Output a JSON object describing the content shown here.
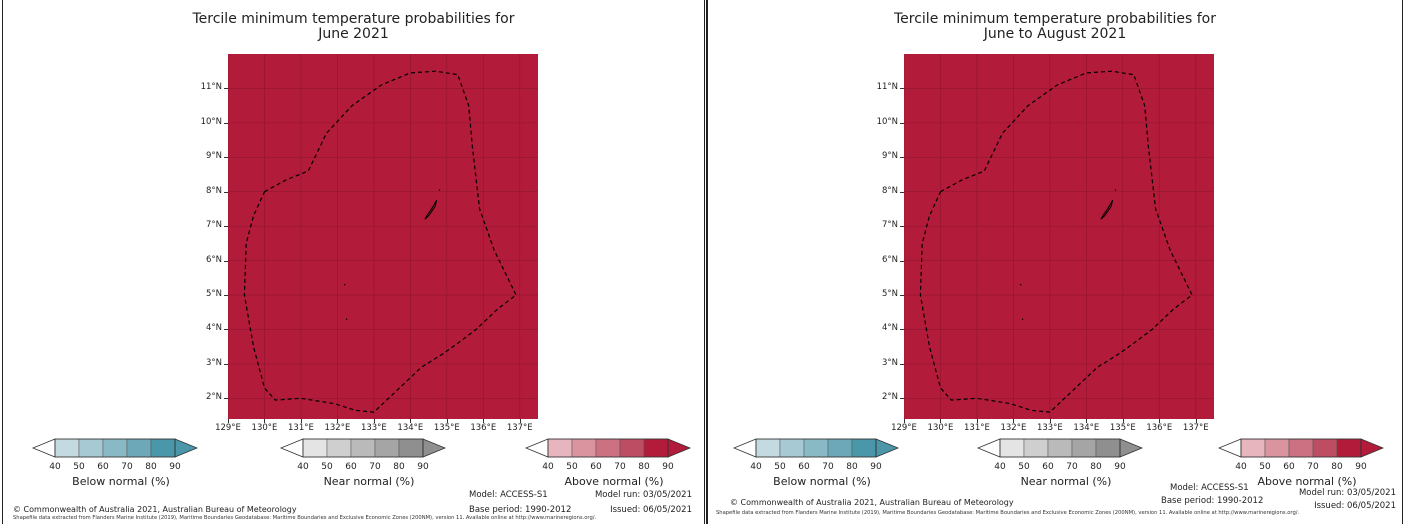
{
  "panels": [
    {
      "title_line1": "Tercile minimum temperature probabilities for",
      "title_line2": "June 2021"
    },
    {
      "title_line1": "Tercile minimum temperature probabilities for",
      "title_line2": "June to August 2021"
    }
  ],
  "map": {
    "fill_color": "#b21b39",
    "lat_labels": [
      "11°N",
      "10°N",
      "9°N",
      "8°N",
      "7°N",
      "6°N",
      "5°N",
      "4°N",
      "3°N",
      "2°N"
    ],
    "lon_labels": [
      "129°E",
      "130°E",
      "131°E",
      "132°E",
      "133°E",
      "134°E",
      "135°E",
      "136°E",
      "137°E"
    ],
    "lat_range": [
      1.4,
      12.0
    ],
    "lon_range": [
      129.0,
      137.5
    ]
  },
  "colorbars": [
    {
      "name": "Below normal (%)",
      "ticks": [
        "40",
        "50",
        "60",
        "70",
        "80",
        "90"
      ],
      "colors": [
        "#ffffff",
        "#c3dae1",
        "#a6c9d3",
        "#8ab9c6",
        "#6da8b8",
        "#4a97aa"
      ]
    },
    {
      "name": "Near normal (%)",
      "ticks": [
        "40",
        "50",
        "60",
        "70",
        "80",
        "90"
      ],
      "colors": [
        "#ffffff",
        "#e4e4e4",
        "#cfcfcf",
        "#bababa",
        "#a5a5a5",
        "#8f8f8f"
      ]
    },
    {
      "name": "Above normal (%)",
      "ticks": [
        "40",
        "50",
        "60",
        "70",
        "80",
        "90"
      ],
      "colors": [
        "#ffffff",
        "#e6b5bd",
        "#d9949f",
        "#cb7181",
        "#bd4d62",
        "#b21b39"
      ]
    }
  ],
  "footer": {
    "model": "Model: ACCESS-S1",
    "base_period": "Base period: 1990-2012",
    "model_run": "Model run: 03/05/2021",
    "issued": "Issued: 06/05/2021",
    "copyright": "© Commonwealth of Australia 2021, Australian Bureau of Meteorology",
    "shapefile": "Shapefile data extracted from Flanders Marine Institute (2019), Maritime Boundaries Geodatabase: Maritime Boundaries and Exclusive Economic Zones (200NM), version 11. Available online at http://www.marineregions.org/."
  }
}
